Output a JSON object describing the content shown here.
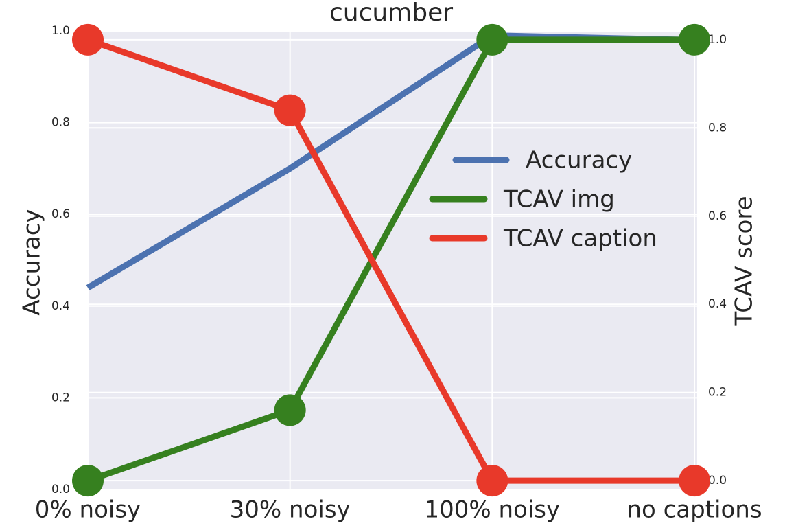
{
  "chart_data": {
    "type": "line",
    "title": "cucumber",
    "categories": [
      "0% noisy",
      "30% noisy",
      "100% noisy",
      "no captions"
    ],
    "ylabel": "Accuracy",
    "y2label": "TCAV score",
    "ylim": [
      0,
      1
    ],
    "yticks": [
      {
        "value": 0,
        "label": "0.0"
      },
      0.2,
      0.4,
      0.6,
      0.8,
      {
        "value": 1,
        "label": "1.0"
      }
    ],
    "y2lim": [
      -0.02,
      1.02
    ],
    "y2ticks": [
      {
        "value": 0,
        "label": "0.0"
      },
      0.2,
      0.4,
      0.6,
      0.8,
      {
        "value": 1,
        "label": "1.0"
      }
    ],
    "grid": true,
    "background": "#eaeaf2",
    "series": [
      {
        "name": "Accuracy",
        "color": "#4c72b0",
        "values": [
          0.44,
          0.7,
          0.99,
          0.98
        ],
        "axis": "y",
        "marker": false
      },
      {
        "name": "TCAV img",
        "color": "#36801f",
        "values": [
          0.0,
          0.16,
          1.0,
          1.0
        ],
        "axis": "y2",
        "marker": true
      },
      {
        "name": "TCAV caption",
        "color": "#e8392a",
        "values": [
          1.0,
          0.84,
          0.0,
          0.0
        ],
        "axis": "y2",
        "marker": true
      }
    ]
  }
}
